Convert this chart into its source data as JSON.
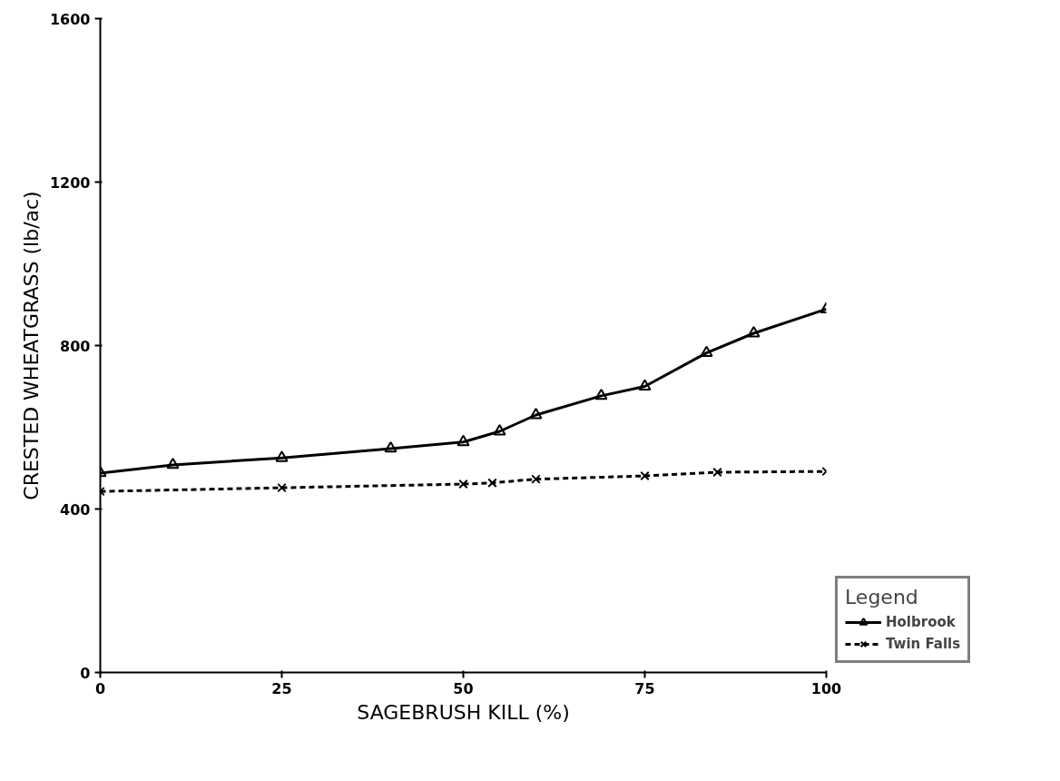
{
  "chart_data": {
    "type": "line",
    "xlabel": "SAGEBRUSH KILL (%)",
    "ylabel": "CRESTED WHEATGRASS (lb/ac)",
    "legend_title": "Legend",
    "xlim": [
      0,
      100
    ],
    "xticks": [
      0,
      25,
      50,
      75,
      100
    ],
    "ylim": [
      0,
      1600
    ],
    "yticks": [
      0,
      400,
      800,
      1200,
      1600
    ],
    "grid": false,
    "legend": "bottom right",
    "series": [
      {
        "name": "Holbrook",
        "color": "#000000",
        "marker": "triangle",
        "line_style": "solid",
        "x": [
          0,
          10,
          25,
          40,
          50,
          55,
          60,
          69,
          75,
          83.5,
          90,
          100
        ],
        "values": [
          488,
          508,
          525,
          548,
          564,
          590,
          630,
          677,
          700,
          782,
          830,
          889
        ]
      },
      {
        "name": "Twin Falls",
        "color": "#000000",
        "marker": "cross",
        "line_style": "dashed",
        "x": [
          0,
          25,
          50,
          54,
          60,
          75,
          85,
          100
        ],
        "values": [
          443,
          452,
          461,
          464,
          473,
          481,
          490,
          492
        ]
      }
    ]
  }
}
